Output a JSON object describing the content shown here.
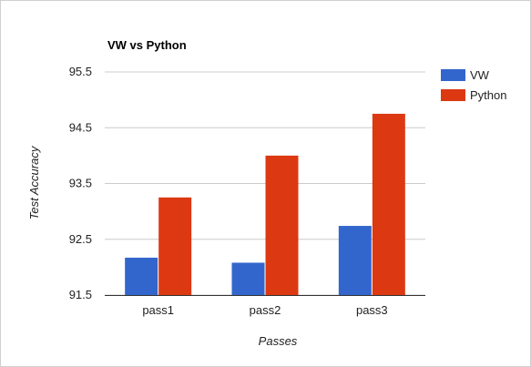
{
  "chart_data": {
    "type": "bar",
    "title": "VW vs Python",
    "xlabel": "Passes",
    "ylabel": "Test Accuracy",
    "categories": [
      "pass1",
      "pass2",
      "pass3"
    ],
    "series": [
      {
        "name": "VW",
        "color": "#3366cc",
        "values": [
          92.17,
          92.08,
          92.74
        ]
      },
      {
        "name": "Python",
        "color": "#dc3912",
        "values": [
          93.25,
          94.0,
          94.75
        ]
      }
    ],
    "ylim": [
      91.5,
      95.5
    ],
    "yticks": [
      "91.5",
      "92.5",
      "93.5",
      "94.5",
      "95.5"
    ],
    "grid": true,
    "legend_position": "right"
  }
}
